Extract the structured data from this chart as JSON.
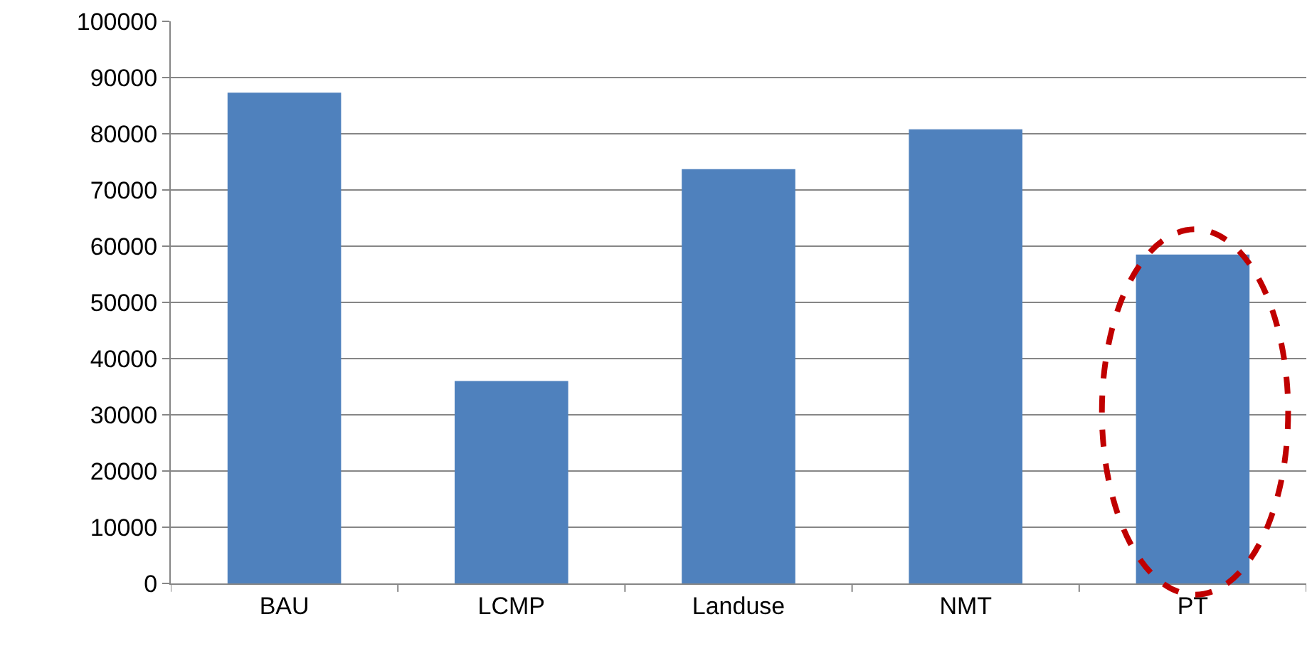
{
  "chart_data": {
    "type": "bar",
    "categories": [
      "BAU",
      "LCMP",
      "Landuse",
      "NMT",
      "PT"
    ],
    "values": [
      87300,
      36000,
      73700,
      80800,
      58500
    ],
    "color": "#4f81bd",
    "ylim": [
      0,
      100000
    ],
    "yticks": [
      0,
      10000,
      20000,
      30000,
      40000,
      50000,
      60000,
      70000,
      80000,
      90000,
      100000
    ],
    "grid": "y",
    "legend": false
  }
}
